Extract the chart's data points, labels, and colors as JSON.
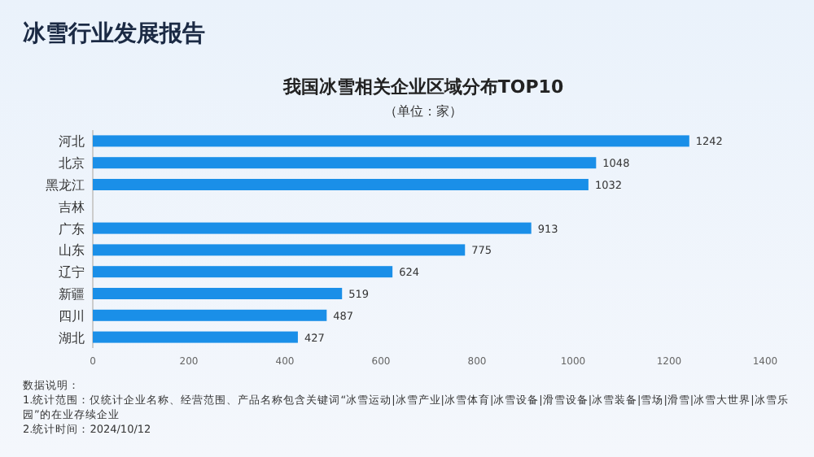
{
  "chart_data": {
    "type": "bar",
    "orientation": "horizontal",
    "title": "我国冰雪相关企业区域分布TOP10",
    "subtitle": "（单位：家）",
    "categories": [
      "河北",
      "北京",
      "黑龙江",
      "吉林",
      "广东",
      "山东",
      "辽宁",
      "新疆",
      "四川",
      "湖北"
    ],
    "values": [
      1242,
      1048,
      1032,
      null,
      913,
      775,
      624,
      519,
      487,
      427
    ],
    "color": "#1a8fe8",
    "xlim": [
      0,
      1400
    ],
    "xticks": [
      0,
      200,
      400,
      600,
      800,
      1000,
      1200,
      1400
    ],
    "data_labels": true,
    "grid": false,
    "annotations": [
      "冰雪行业发展报告",
      "数据说明：",
      "1.统计范围：仅统计企业名称、经营范围、产品名称包含关键词“冰雪运动|冰雪产业|冰雪体育|冰雪设备|滑雪设备|冰雪装备|雪场|滑雪|冰雪大世界|冰雪乐园”的在业存续企业",
      "2.统计时间：2024/10/12"
    ]
  }
}
